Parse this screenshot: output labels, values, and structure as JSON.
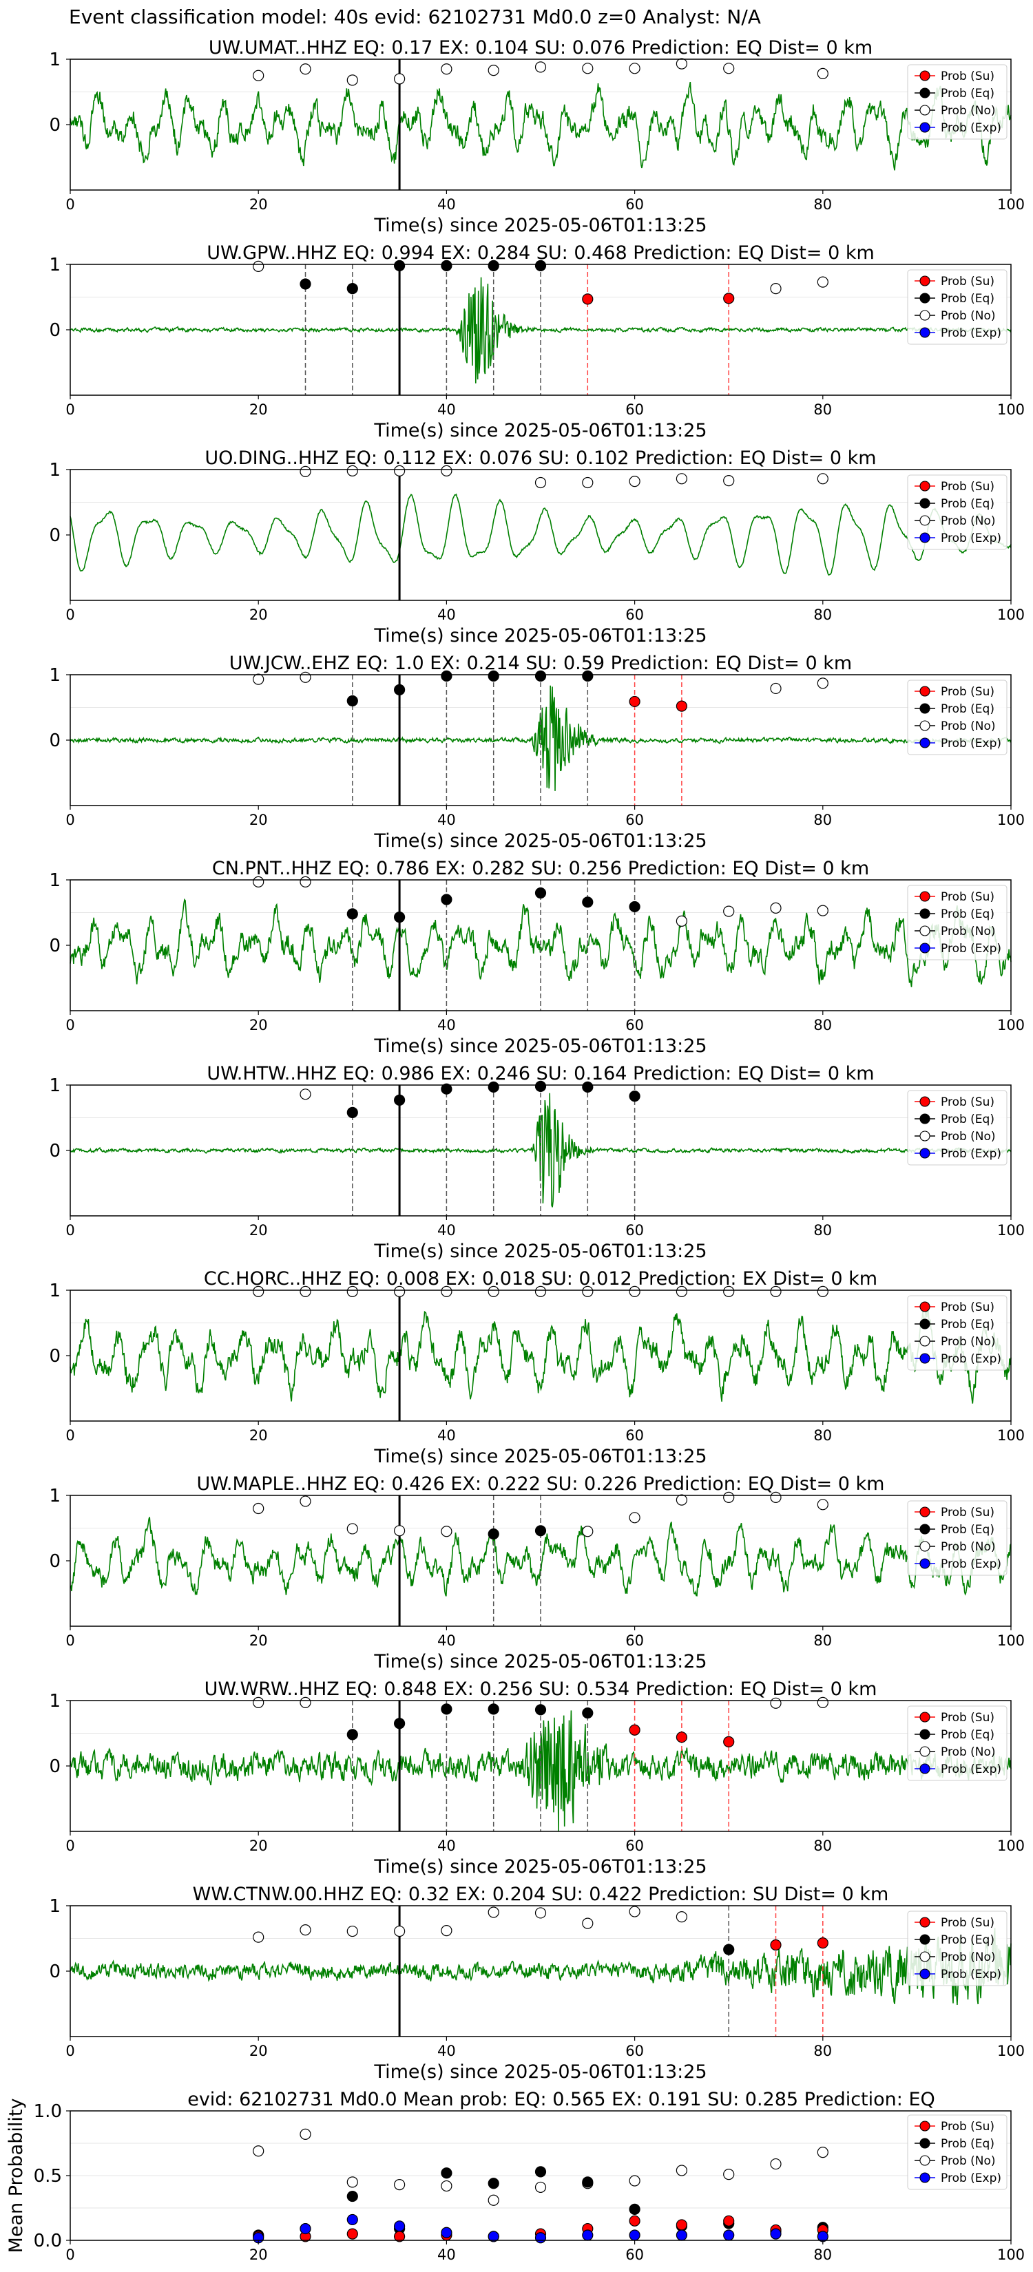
{
  "figure": {
    "suptitle": "Event classification model: 40s evid: 62102731 Md0.0 z=0 Analyst: N/A",
    "xlabel": "Time(s) since 2025-05-06T01:13:25",
    "legend_labels": [
      "Prob (Su)",
      "Prob (Eq)",
      "Prob (No)",
      "Prob (Exp)"
    ],
    "colors": {
      "waveform": "#008000",
      "su": "#ff0000",
      "eq": "#000000",
      "no": "#ffffff",
      "exp": "#0000ff",
      "origin_line": "#000000",
      "eq_pick": "#555555",
      "su_pick": "#ff4040"
    }
  },
  "chart_data": [
    {
      "type": "line",
      "title": "UW.UMAT..HHZ   EQ: 0.17  EX: 0.104  SU: 0.076   Prediction: EQ",
      "dist": "Dist= 0 km",
      "waveform": "high_noise",
      "amp": 0.55,
      "xlim": [
        0,
        100
      ],
      "ylim": [
        -1,
        1
      ],
      "x_ticks": [
        0,
        20,
        40,
        60,
        80,
        100
      ],
      "y_ticks": [
        0,
        1
      ],
      "origin_time": 35,
      "picks_eq": [],
      "picks_su": [],
      "points": [
        {
          "x": 20,
          "y": 0.75,
          "cls": "no"
        },
        {
          "x": 25,
          "y": 0.85,
          "cls": "no"
        },
        {
          "x": 30,
          "y": 0.68,
          "cls": "no"
        },
        {
          "x": 35,
          "y": 0.7,
          "cls": "no"
        },
        {
          "x": 40,
          "y": 0.85,
          "cls": "no"
        },
        {
          "x": 45,
          "y": 0.83,
          "cls": "no"
        },
        {
          "x": 50,
          "y": 0.88,
          "cls": "no"
        },
        {
          "x": 55,
          "y": 0.86,
          "cls": "no"
        },
        {
          "x": 60,
          "y": 0.86,
          "cls": "no"
        },
        {
          "x": 65,
          "y": 0.93,
          "cls": "no"
        },
        {
          "x": 70,
          "y": 0.86,
          "cls": "no"
        },
        {
          "x": 80,
          "y": 0.78,
          "cls": "no"
        }
      ]
    },
    {
      "type": "line",
      "title": "UW.GPW..HHZ   EQ: 0.994  EX: 0.284  SU: 0.468   Prediction: EQ",
      "dist": "Dist= 0 km",
      "waveform": "quiet_burst",
      "amp": 0.05,
      "burst": [
        41,
        46,
        0.85
      ],
      "xlim": [
        0,
        100
      ],
      "ylim": [
        -1,
        1
      ],
      "x_ticks": [
        0,
        20,
        40,
        60,
        80,
        100
      ],
      "y_ticks": [
        0,
        1
      ],
      "origin_time": 35,
      "picks_eq": [
        25,
        30,
        40,
        45,
        50
      ],
      "picks_su": [
        55,
        70
      ],
      "points": [
        {
          "x": 20,
          "y": 0.97,
          "cls": "no"
        },
        {
          "x": 25,
          "y": 0.7,
          "cls": "eq"
        },
        {
          "x": 30,
          "y": 0.63,
          "cls": "eq"
        },
        {
          "x": 35,
          "y": 0.98,
          "cls": "eq"
        },
        {
          "x": 40,
          "y": 0.98,
          "cls": "eq"
        },
        {
          "x": 45,
          "y": 0.98,
          "cls": "eq"
        },
        {
          "x": 50,
          "y": 0.98,
          "cls": "eq"
        },
        {
          "x": 55,
          "y": 0.47,
          "cls": "su"
        },
        {
          "x": 70,
          "y": 0.48,
          "cls": "su"
        },
        {
          "x": 75,
          "y": 0.63,
          "cls": "no"
        },
        {
          "x": 80,
          "y": 0.73,
          "cls": "no"
        }
      ]
    },
    {
      "type": "line",
      "title": "UO.DING..HHZ   EQ: 0.112  EX: 0.076  SU: 0.102   Prediction: EQ",
      "dist": "Dist= 0 km",
      "waveform": "ocean",
      "amp": 0.6,
      "xlim": [
        0,
        100
      ],
      "ylim": [
        -1,
        1
      ],
      "x_ticks": [
        0,
        20,
        40,
        60,
        80,
        100
      ],
      "y_ticks": [
        0,
        1
      ],
      "origin_time": 35,
      "picks_eq": [],
      "picks_su": [],
      "points": [
        {
          "x": 25,
          "y": 0.97,
          "cls": "no"
        },
        {
          "x": 30,
          "y": 0.98,
          "cls": "no"
        },
        {
          "x": 35,
          "y": 0.98,
          "cls": "no"
        },
        {
          "x": 40,
          "y": 0.98,
          "cls": "no"
        },
        {
          "x": 50,
          "y": 0.8,
          "cls": "no"
        },
        {
          "x": 55,
          "y": 0.8,
          "cls": "no"
        },
        {
          "x": 60,
          "y": 0.82,
          "cls": "no"
        },
        {
          "x": 65,
          "y": 0.86,
          "cls": "no"
        },
        {
          "x": 70,
          "y": 0.83,
          "cls": "no"
        },
        {
          "x": 80,
          "y": 0.86,
          "cls": "no"
        }
      ]
    },
    {
      "type": "line",
      "title": "UW.JCW..EHZ   EQ: 1.0  EX: 0.214  SU: 0.59   Prediction: EQ    Dist= 0 km",
      "dist": "",
      "waveform": "quiet_burst",
      "amp": 0.06,
      "burst": [
        49,
        54,
        0.9
      ],
      "xlim": [
        0,
        100
      ],
      "ylim": [
        -1,
        1
      ],
      "x_ticks": [
        0,
        20,
        40,
        60,
        80,
        100
      ],
      "y_ticks": [
        0,
        1
      ],
      "origin_time": 35,
      "picks_eq": [
        30,
        40,
        45,
        50,
        55
      ],
      "picks_su": [
        60,
        65
      ],
      "points": [
        {
          "x": 20,
          "y": 0.93,
          "cls": "no"
        },
        {
          "x": 25,
          "y": 0.96,
          "cls": "no"
        },
        {
          "x": 30,
          "y": 0.6,
          "cls": "eq"
        },
        {
          "x": 35,
          "y": 0.77,
          "cls": "eq"
        },
        {
          "x": 40,
          "y": 0.98,
          "cls": "eq"
        },
        {
          "x": 45,
          "y": 0.98,
          "cls": "eq"
        },
        {
          "x": 50,
          "y": 0.98,
          "cls": "eq"
        },
        {
          "x": 55,
          "y": 0.98,
          "cls": "eq"
        },
        {
          "x": 60,
          "y": 0.59,
          "cls": "su"
        },
        {
          "x": 65,
          "y": 0.52,
          "cls": "su"
        },
        {
          "x": 75,
          "y": 0.79,
          "cls": "no"
        },
        {
          "x": 80,
          "y": 0.87,
          "cls": "no"
        }
      ]
    },
    {
      "type": "line",
      "title": "CN.PNT..HHZ   EQ: 0.786  EX: 0.282  SU: 0.256   Prediction: EQ    Dist= 0 km",
      "dist": "",
      "waveform": "high_noise",
      "amp": 0.55,
      "xlim": [
        0,
        100
      ],
      "ylim": [
        -1,
        1
      ],
      "x_ticks": [
        0,
        20,
        40,
        60,
        80,
        100
      ],
      "y_ticks": [
        0,
        1
      ],
      "origin_time": 35,
      "picks_eq": [
        30,
        40,
        50,
        55,
        60
      ],
      "picks_su": [],
      "points": [
        {
          "x": 20,
          "y": 0.97,
          "cls": "no"
        },
        {
          "x": 25,
          "y": 0.97,
          "cls": "no"
        },
        {
          "x": 30,
          "y": 0.48,
          "cls": "eq"
        },
        {
          "x": 35,
          "y": 0.43,
          "cls": "eq"
        },
        {
          "x": 40,
          "y": 0.7,
          "cls": "eq"
        },
        {
          "x": 50,
          "y": 0.8,
          "cls": "eq"
        },
        {
          "x": 55,
          "y": 0.66,
          "cls": "eq"
        },
        {
          "x": 60,
          "y": 0.59,
          "cls": "eq"
        },
        {
          "x": 65,
          "y": 0.37,
          "cls": "no"
        },
        {
          "x": 70,
          "y": 0.52,
          "cls": "no"
        },
        {
          "x": 75,
          "y": 0.57,
          "cls": "no"
        },
        {
          "x": 80,
          "y": 0.53,
          "cls": "no"
        }
      ]
    },
    {
      "type": "line",
      "title": "UW.HTW..HHZ   EQ: 0.986  EX: 0.246  SU: 0.164   Prediction: EQ    Dist= 0 km",
      "dist": "",
      "waveform": "quiet_burst",
      "amp": 0.05,
      "burst": [
        49,
        53,
        0.95
      ],
      "xlim": [
        0,
        100
      ],
      "ylim": [
        -1,
        1
      ],
      "x_ticks": [
        0,
        20,
        40,
        60,
        80,
        100
      ],
      "y_ticks": [
        0,
        1
      ],
      "origin_time": 35,
      "picks_eq": [
        30,
        40,
        45,
        50,
        55,
        60
      ],
      "picks_su": [],
      "points": [
        {
          "x": 25,
          "y": 0.86,
          "cls": "no"
        },
        {
          "x": 30,
          "y": 0.58,
          "cls": "eq"
        },
        {
          "x": 35,
          "y": 0.77,
          "cls": "eq"
        },
        {
          "x": 40,
          "y": 0.94,
          "cls": "eq"
        },
        {
          "x": 45,
          "y": 0.97,
          "cls": "eq"
        },
        {
          "x": 50,
          "y": 0.98,
          "cls": "eq"
        },
        {
          "x": 55,
          "y": 0.97,
          "cls": "eq"
        },
        {
          "x": 60,
          "y": 0.83,
          "cls": "eq"
        }
      ]
    },
    {
      "type": "line",
      "title": "CC.HORC..HHZ   EQ: 0.008  EX: 0.018  SU: 0.012   Prediction: EX    Dist= 0 km",
      "dist": "",
      "waveform": "high_noise",
      "amp": 0.6,
      "xlim": [
        0,
        100
      ],
      "ylim": [
        -1,
        1
      ],
      "x_ticks": [
        0,
        20,
        40,
        60,
        80,
        100
      ],
      "y_ticks": [
        0,
        1
      ],
      "origin_time": 35,
      "picks_eq": [],
      "picks_su": [],
      "points": [
        {
          "x": 20,
          "y": 0.98,
          "cls": "no"
        },
        {
          "x": 25,
          "y": 0.98,
          "cls": "no"
        },
        {
          "x": 30,
          "y": 0.98,
          "cls": "no"
        },
        {
          "x": 35,
          "y": 0.98,
          "cls": "no"
        },
        {
          "x": 40,
          "y": 0.98,
          "cls": "no"
        },
        {
          "x": 45,
          "y": 0.98,
          "cls": "no"
        },
        {
          "x": 50,
          "y": 0.98,
          "cls": "no"
        },
        {
          "x": 55,
          "y": 0.98,
          "cls": "no"
        },
        {
          "x": 60,
          "y": 0.98,
          "cls": "no"
        },
        {
          "x": 65,
          "y": 0.98,
          "cls": "no"
        },
        {
          "x": 70,
          "y": 0.98,
          "cls": "no"
        },
        {
          "x": 75,
          "y": 0.98,
          "cls": "no"
        },
        {
          "x": 80,
          "y": 0.98,
          "cls": "no"
        }
      ]
    },
    {
      "type": "line",
      "title": "UW.MAPLE..HHZ   EQ: 0.426  EX: 0.222  SU: 0.226   Prediction: EQ    Dist= 0 km",
      "dist": "",
      "waveform": "high_noise",
      "amp": 0.5,
      "xlim": [
        0,
        100
      ],
      "ylim": [
        -1,
        1
      ],
      "x_ticks": [
        0,
        20,
        40,
        60,
        80,
        100
      ],
      "y_ticks": [
        0,
        1
      ],
      "origin_time": 35,
      "picks_eq": [
        45,
        50
      ],
      "picks_su": [],
      "points": [
        {
          "x": 20,
          "y": 0.8,
          "cls": "no"
        },
        {
          "x": 25,
          "y": 0.91,
          "cls": "no"
        },
        {
          "x": 30,
          "y": 0.49,
          "cls": "no"
        },
        {
          "x": 35,
          "y": 0.46,
          "cls": "no"
        },
        {
          "x": 40,
          "y": 0.45,
          "cls": "no"
        },
        {
          "x": 45,
          "y": 0.41,
          "cls": "eq"
        },
        {
          "x": 50,
          "y": 0.46,
          "cls": "eq"
        },
        {
          "x": 55,
          "y": 0.45,
          "cls": "no"
        },
        {
          "x": 60,
          "y": 0.66,
          "cls": "no"
        },
        {
          "x": 65,
          "y": 0.93,
          "cls": "no"
        },
        {
          "x": 70,
          "y": 0.97,
          "cls": "no"
        },
        {
          "x": 75,
          "y": 0.97,
          "cls": "no"
        },
        {
          "x": 80,
          "y": 0.86,
          "cls": "no"
        }
      ]
    },
    {
      "type": "line",
      "title": "UW.WRW..HHZ   EQ: 0.848  EX: 0.256  SU: 0.534   Prediction: EQ    Dist= 0 km",
      "dist": "",
      "waveform": "noise_burst",
      "amp": 0.35,
      "burst": [
        48,
        56,
        0.95
      ],
      "xlim": [
        0,
        100
      ],
      "ylim": [
        -1,
        1
      ],
      "x_ticks": [
        0,
        20,
        40,
        60,
        80,
        100
      ],
      "y_ticks": [
        0,
        1
      ],
      "origin_time": 35,
      "picks_eq": [
        30,
        40,
        45,
        50,
        55
      ],
      "picks_su": [
        60,
        65,
        70
      ],
      "points": [
        {
          "x": 20,
          "y": 0.97,
          "cls": "no"
        },
        {
          "x": 25,
          "y": 0.97,
          "cls": "no"
        },
        {
          "x": 30,
          "y": 0.48,
          "cls": "eq"
        },
        {
          "x": 35,
          "y": 0.65,
          "cls": "eq"
        },
        {
          "x": 40,
          "y": 0.87,
          "cls": "eq"
        },
        {
          "x": 45,
          "y": 0.87,
          "cls": "eq"
        },
        {
          "x": 50,
          "y": 0.86,
          "cls": "eq"
        },
        {
          "x": 55,
          "y": 0.81,
          "cls": "eq"
        },
        {
          "x": 60,
          "y": 0.55,
          "cls": "su"
        },
        {
          "x": 65,
          "y": 0.44,
          "cls": "su"
        },
        {
          "x": 70,
          "y": 0.37,
          "cls": "su"
        },
        {
          "x": 75,
          "y": 0.96,
          "cls": "no"
        },
        {
          "x": 80,
          "y": 0.97,
          "cls": "no"
        }
      ]
    },
    {
      "type": "line",
      "title": "WW.CTNW.00.HHZ   EQ: 0.32  EX: 0.204  SU: 0.422   Prediction: SU    Dist= 0 km",
      "dist": "",
      "waveform": "growing_noise",
      "amp": 0.2,
      "xlim": [
        0,
        100
      ],
      "ylim": [
        -1,
        1
      ],
      "x_ticks": [
        0,
        20,
        40,
        60,
        80,
        100
      ],
      "y_ticks": [
        0,
        1
      ],
      "origin_time": 35,
      "picks_eq": [
        70
      ],
      "picks_su": [
        75,
        80
      ],
      "points": [
        {
          "x": 20,
          "y": 0.52,
          "cls": "no"
        },
        {
          "x": 25,
          "y": 0.63,
          "cls": "no"
        },
        {
          "x": 30,
          "y": 0.61,
          "cls": "no"
        },
        {
          "x": 35,
          "y": 0.61,
          "cls": "no"
        },
        {
          "x": 40,
          "y": 0.62,
          "cls": "no"
        },
        {
          "x": 45,
          "y": 0.9,
          "cls": "no"
        },
        {
          "x": 50,
          "y": 0.89,
          "cls": "no"
        },
        {
          "x": 55,
          "y": 0.73,
          "cls": "no"
        },
        {
          "x": 60,
          "y": 0.91,
          "cls": "no"
        },
        {
          "x": 65,
          "y": 0.83,
          "cls": "no"
        },
        {
          "x": 70,
          "y": 0.33,
          "cls": "eq"
        },
        {
          "x": 75,
          "y": 0.4,
          "cls": "su"
        },
        {
          "x": 80,
          "y": 0.43,
          "cls": "su"
        }
      ]
    },
    {
      "type": "scatter",
      "title": "evid: 62102731  Md0.0   Mean prob:   EQ: 0.565  EX: 0.191  SU: 0.285   Prediction: EQ",
      "ylabel": "Mean Probability",
      "xlim": [
        0,
        100
      ],
      "ylim": [
        0,
        1.0
      ],
      "x_ticks": [
        0,
        20,
        40,
        60,
        80,
        100
      ],
      "y_ticks": [
        "0.0",
        "0.5",
        "1.0"
      ],
      "x": [
        20,
        25,
        30,
        35,
        40,
        45,
        50,
        55,
        60,
        65,
        70,
        75,
        80
      ],
      "series": [
        {
          "name": "Prob (No)",
          "cls": "no",
          "values": [
            0.69,
            0.82,
            0.45,
            0.43,
            0.42,
            0.31,
            0.41,
            0.44,
            0.46,
            0.54,
            0.51,
            0.59,
            0.68
          ]
        },
        {
          "name": "Prob (Eq)",
          "cls": "eq",
          "values": [
            0.04,
            0.09,
            0.34,
            0.09,
            0.52,
            0.44,
            0.53,
            0.45,
            0.24,
            0.11,
            0.13,
            0.07,
            0.1
          ]
        },
        {
          "name": "Prob (Su)",
          "cls": "su",
          "values": [
            0.03,
            0.03,
            0.05,
            0.03,
            0.04,
            0.03,
            0.05,
            0.09,
            0.15,
            0.12,
            0.15,
            0.08,
            0.08
          ]
        },
        {
          "name": "Prob (Exp)",
          "cls": "exp",
          "values": [
            0.02,
            0.09,
            0.16,
            0.11,
            0.06,
            0.03,
            0.02,
            0.04,
            0.04,
            0.04,
            0.04,
            0.05,
            0.03
          ]
        }
      ]
    }
  ]
}
